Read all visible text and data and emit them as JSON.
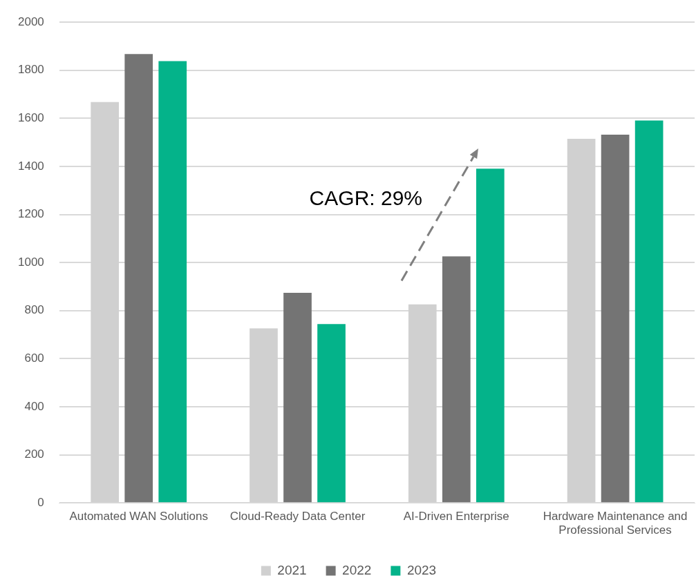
{
  "chart_data": {
    "type": "bar",
    "categories": [
      "Automated WAN Solutions",
      "Cloud-Ready Data Center",
      "AI-Driven Enterprise",
      "Hardware Maintenance and Professional Services"
    ],
    "series": [
      {
        "name": "2021",
        "color": "#d0d0d0",
        "values": [
          1668,
          726,
          826,
          1515
        ]
      },
      {
        "name": "2022",
        "color": "#747474",
        "values": [
          1868,
          874,
          1026,
          1532
        ]
      },
      {
        "name": "2023",
        "color": "#04b38a",
        "values": [
          1838,
          744,
          1391,
          1591
        ]
      }
    ],
    "ylim": [
      0,
      2000
    ],
    "yticks": [
      0,
      200,
      400,
      600,
      800,
      1000,
      1200,
      1400,
      1600,
      1800,
      2000
    ],
    "grid": "y",
    "legend": "bottom",
    "annotations": [
      "CAGR: 29%"
    ]
  }
}
